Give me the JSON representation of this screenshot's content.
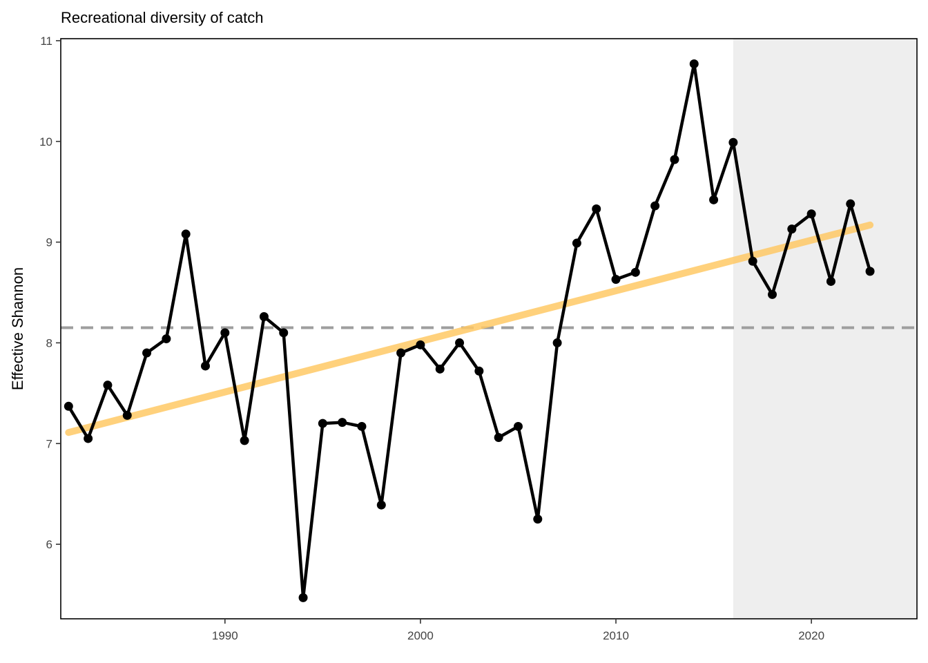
{
  "chart_data": {
    "type": "line",
    "title": "Recreational diversity of catch",
    "xlabel": "",
    "ylabel": "Effective Shannon",
    "xlim": [
      1981.6,
      2025.4
    ],
    "ylim": [
      5.26,
      11.02
    ],
    "x_ticks": [
      1990,
      2000,
      2010,
      2020
    ],
    "y_ticks": [
      6,
      7,
      8,
      9,
      10,
      11
    ],
    "grid": false,
    "shaded_region": {
      "x_start": 2016,
      "x_end": 2025.4,
      "color": "#eeeeee"
    },
    "reference_line": {
      "y": 8.15,
      "style": "dashed",
      "color": "#9e9e9e"
    },
    "trend_line": {
      "x": [
        1982,
        2023
      ],
      "y": [
        7.11,
        9.17
      ],
      "color": "#ffc966"
    },
    "series": [
      {
        "color": "#000000",
        "x": [
          1982,
          1983,
          1984,
          1985,
          1986,
          1987,
          1988,
          1989,
          1990,
          1991,
          1992,
          1993,
          1994,
          1995,
          1996,
          1997,
          1998,
          1999,
          2000,
          2001,
          2002,
          2003,
          2004,
          2005,
          2006,
          2007,
          2008,
          2009,
          2010,
          2011,
          2012,
          2013,
          2014,
          2015,
          2016,
          2017,
          2018,
          2019,
          2020,
          2021,
          2022,
          2023
        ],
        "y": [
          7.37,
          7.05,
          7.58,
          7.28,
          7.9,
          8.04,
          9.08,
          7.77,
          8.1,
          7.03,
          8.26,
          8.1,
          5.47,
          7.2,
          7.21,
          7.17,
          6.39,
          7.9,
          7.98,
          7.74,
          8.0,
          7.72,
          7.06,
          7.17,
          6.25,
          8.0,
          8.99,
          9.33,
          8.63,
          8.7,
          9.36,
          9.82,
          10.77,
          9.42,
          9.99,
          8.81,
          8.48,
          9.13,
          9.28,
          8.61,
          9.38,
          8.71
        ]
      }
    ]
  }
}
